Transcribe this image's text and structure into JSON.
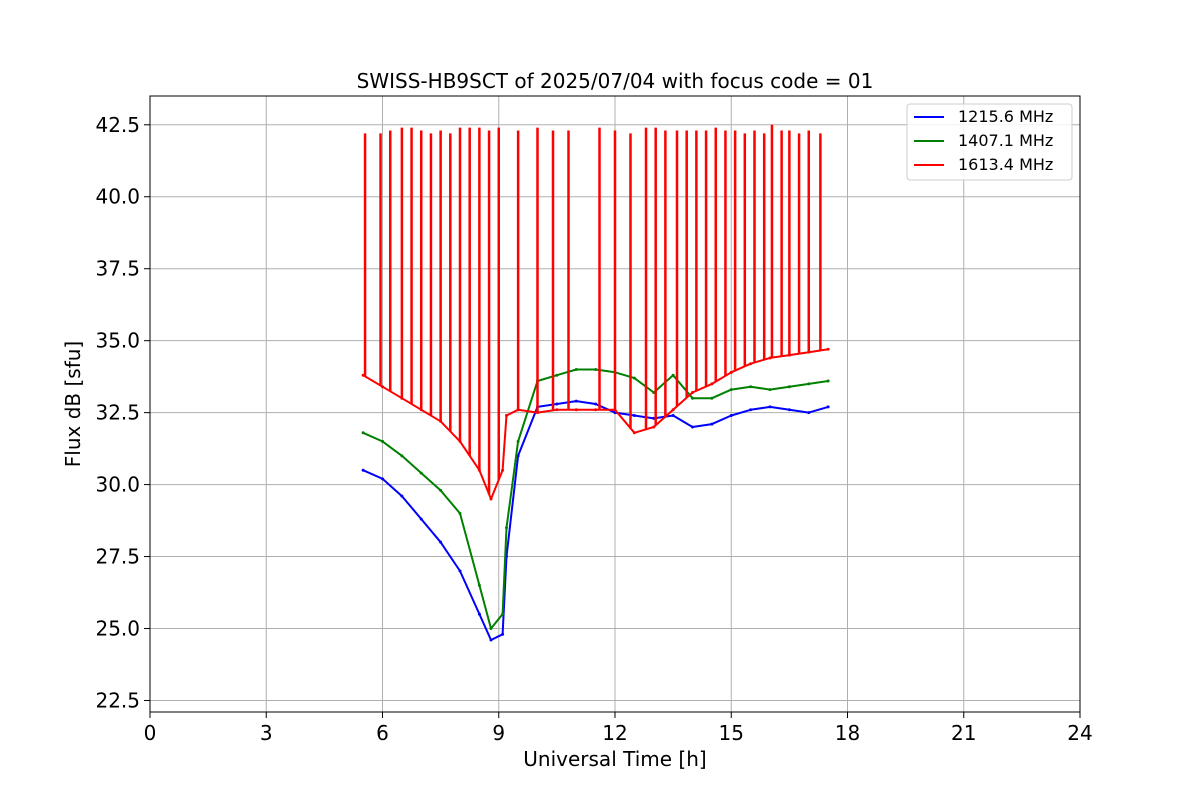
{
  "chart_data": {
    "type": "line",
    "title": "SWISS-HB9SCT of 2025/07/04 with focus code = 01",
    "xlabel": "Universal Time [h]",
    "ylabel": "Flux dB [sfu]",
    "xlim": [
      0,
      24
    ],
    "ylim": [
      22.1,
      43.5
    ],
    "xticks": [
      0,
      3,
      6,
      9,
      12,
      15,
      18,
      21,
      24
    ],
    "xtick_labels": [
      "0",
      "3",
      "6",
      "9",
      "12",
      "15",
      "18",
      "21",
      "24"
    ],
    "yticks": [
      22.5,
      25.0,
      27.5,
      30.0,
      32.5,
      35.0,
      37.5,
      40.0,
      42.5
    ],
    "ytick_labels": [
      "22.5",
      "25.0",
      "27.5",
      "30.0",
      "32.5",
      "35.0",
      "37.5",
      "40.0",
      "42.5"
    ],
    "grid": true,
    "legend_position": "top-right",
    "series": [
      {
        "name": "1215.6 MHz",
        "color": "#0000ff",
        "x": [
          5.5,
          6.0,
          6.5,
          7.0,
          7.5,
          8.0,
          8.5,
          8.8,
          9.1,
          9.2,
          9.5,
          10.0,
          10.5,
          11.0,
          11.5,
          12.0,
          12.5,
          13.0,
          13.5,
          14.0,
          14.5,
          15.0,
          15.5,
          16.0,
          16.5,
          17.0,
          17.5
        ],
        "values": [
          30.5,
          30.2,
          29.6,
          28.8,
          28.0,
          27.0,
          25.5,
          24.6,
          24.8,
          27.5,
          31.0,
          32.7,
          32.8,
          32.9,
          32.8,
          32.5,
          32.4,
          32.3,
          32.4,
          32.0,
          32.1,
          32.4,
          32.6,
          32.7,
          32.6,
          32.5,
          32.7
        ]
      },
      {
        "name": "1407.1 MHz",
        "color": "#008000",
        "x": [
          5.5,
          6.0,
          6.5,
          7.0,
          7.5,
          8.0,
          8.5,
          8.8,
          9.1,
          9.2,
          9.5,
          10.0,
          10.5,
          11.0,
          11.5,
          12.0,
          12.5,
          13.0,
          13.5,
          14.0,
          14.5,
          15.0,
          15.5,
          16.0,
          16.5,
          17.0,
          17.5
        ],
        "values": [
          31.8,
          31.5,
          31.0,
          30.4,
          29.8,
          29.0,
          26.5,
          25.0,
          25.5,
          28.5,
          31.5,
          33.6,
          33.8,
          34.0,
          34.0,
          33.9,
          33.7,
          33.2,
          33.8,
          33.0,
          33.0,
          33.3,
          33.4,
          33.3,
          33.4,
          33.5,
          33.6
        ]
      },
      {
        "name": "1613.4 MHz",
        "color": "#ff0000",
        "x": [
          5.5,
          6.0,
          6.5,
          7.0,
          7.5,
          8.0,
          8.5,
          8.8,
          9.1,
          9.2,
          9.5,
          10.0,
          10.5,
          11.0,
          11.5,
          12.0,
          12.5,
          13.0,
          13.5,
          14.0,
          14.5,
          15.0,
          15.5,
          16.0,
          16.5,
          17.0,
          17.5
        ],
        "values": [
          33.8,
          33.4,
          33.0,
          32.6,
          32.2,
          31.5,
          30.5,
          29.5,
          30.5,
          32.4,
          32.6,
          32.5,
          32.6,
          32.6,
          32.6,
          32.6,
          31.8,
          32.0,
          32.6,
          33.2,
          33.5,
          33.9,
          34.2,
          34.4,
          34.5,
          34.6,
          34.7
        ]
      }
    ],
    "spikes": {
      "series": "1613.4 MHz",
      "x": [
        5.55,
        5.95,
        6.2,
        6.5,
        6.75,
        7.0,
        7.25,
        7.5,
        7.75,
        8.0,
        8.25,
        8.5,
        8.75,
        9.0,
        9.5,
        10.0,
        10.4,
        10.8,
        11.6,
        12.0,
        12.4,
        12.8,
        13.05,
        13.3,
        13.6,
        13.85,
        14.1,
        14.35,
        14.6,
        14.85,
        15.1,
        15.35,
        15.6,
        15.85,
        16.05,
        16.3,
        16.5,
        16.75,
        17.0,
        17.3
      ],
      "values": [
        42.2,
        42.2,
        42.3,
        42.4,
        42.4,
        42.3,
        42.2,
        42.3,
        42.2,
        42.4,
        42.4,
        42.4,
        42.3,
        42.4,
        42.3,
        42.4,
        42.3,
        42.3,
        42.4,
        42.3,
        42.2,
        42.4,
        42.4,
        42.3,
        42.3,
        42.3,
        42.3,
        42.3,
        42.4,
        42.3,
        42.3,
        42.2,
        42.3,
        42.2,
        42.5,
        42.3,
        42.3,
        42.2,
        42.3,
        42.2
      ]
    }
  }
}
